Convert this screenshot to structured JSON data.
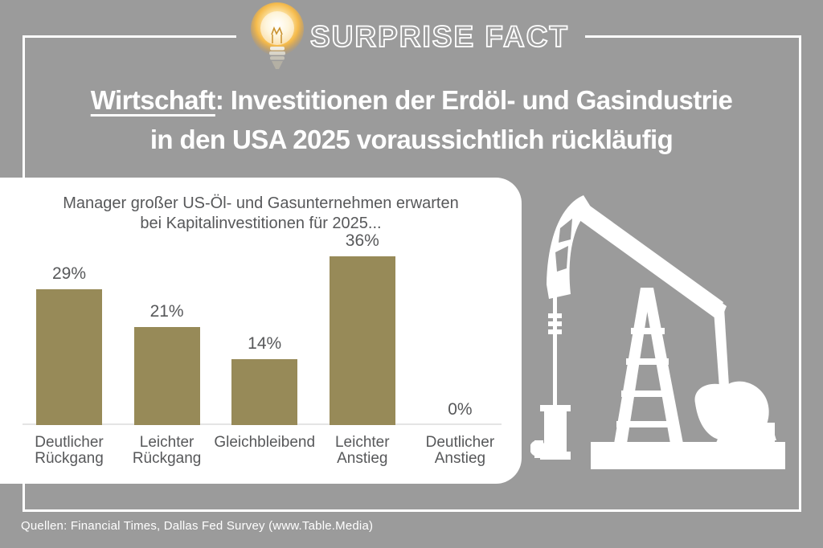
{
  "colors": {
    "background": "#9b9b9b",
    "frame": "#ffffff",
    "bar": "#978a58",
    "chart_text": "#57585a"
  },
  "header": {
    "badge_label": "SURPRISE FACT",
    "icon": "lightbulb-icon"
  },
  "title": {
    "underlined_word": "Wirtschaft",
    "line1_rest": ": Investitionen der Erdöl- und Gasindustrie",
    "line2": "in den USA 2025 voraussichtlich rückläufig"
  },
  "chart_data": {
    "type": "bar",
    "title": "Manager großer US-Öl- und Gasunternehmen erwarten\nbei Kapitalinvestitionen für 2025...",
    "categories": [
      "Deutlicher\nRückgang",
      "Leichter\nRückgang",
      "Gleichbleibend",
      "Leichter\nAnstieg",
      "Deutlicher\nAnstieg"
    ],
    "values": [
      29,
      21,
      14,
      36,
      0
    ],
    "value_labels": [
      "29%",
      "21%",
      "14%",
      "36%",
      "0%"
    ],
    "unit": "%",
    "bar_color": "#978a58",
    "ylim": [
      0,
      36
    ],
    "grid": false,
    "legend": null,
    "illustration": "oil-pumpjack-silhouette"
  },
  "source": "Quellen: Financial Times, Dallas Fed Survey (www.Table.Media)"
}
